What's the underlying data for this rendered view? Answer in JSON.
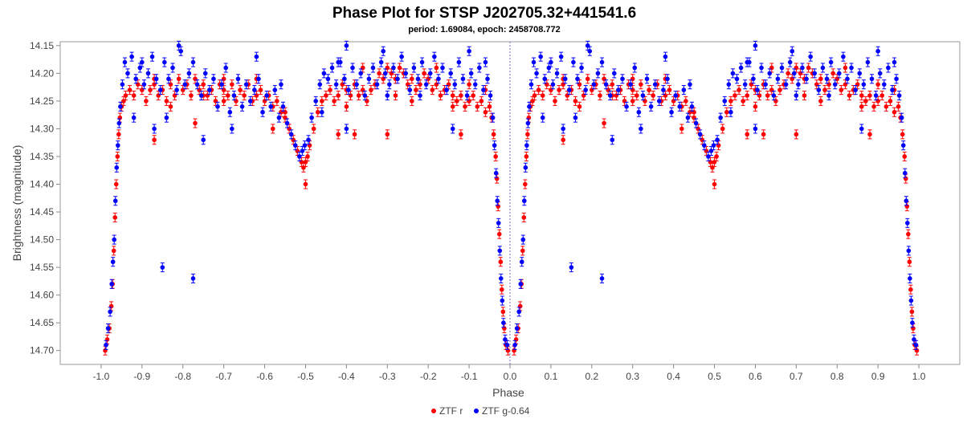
{
  "chart_data": {
    "type": "scatter",
    "title": "Phase Plot for STSP J202705.32+441541.6",
    "subtitle": "period: 1.69084, epoch: 2458708.772",
    "xlabel": "Phase",
    "ylabel": "Brightness (magnitude)",
    "xlim": [
      -1.1,
      1.1
    ],
    "ylim": [
      14.143,
      14.725
    ],
    "y_inverted": true,
    "x_ticks": [
      -1.0,
      -0.9,
      -0.8,
      -0.7,
      -0.6,
      -0.5,
      -0.4,
      -0.3,
      -0.2,
      -0.1,
      0.0,
      0.1,
      0.2,
      0.3,
      0.4,
      0.5,
      0.6,
      0.7,
      0.8,
      0.9,
      1.0
    ],
    "x_tick_labels": [
      "-1.0",
      "-0.9",
      "-0.8",
      "-0.7",
      "-0.6",
      "-0.5",
      "-0.4",
      "-0.3",
      "-0.2",
      "-0.1",
      "0.0",
      "0.1",
      "0.2",
      "0.3",
      "0.4",
      "0.5",
      "0.6",
      "0.7",
      "0.8",
      "0.9",
      "1.0"
    ],
    "y_ticks": [
      14.15,
      14.2,
      14.25,
      14.3,
      14.35,
      14.4,
      14.45,
      14.5,
      14.55,
      14.6,
      14.65,
      14.7
    ],
    "y_tick_labels": [
      "14.15",
      "14.20",
      "14.25",
      "14.30",
      "14.35",
      "14.40",
      "14.45",
      "14.50",
      "14.55",
      "14.60",
      "14.65",
      "14.70"
    ],
    "grid": false,
    "reference_line_x": 0.0,
    "legend_position": "bottom-center",
    "series": [
      {
        "name": "ZTF r",
        "color": "#ff0000",
        "points": [
          [
            0.01,
            14.7
          ],
          [
            0.015,
            14.68
          ],
          [
            0.02,
            14.66
          ],
          [
            0.025,
            14.62
          ],
          [
            0.028,
            14.58
          ],
          [
            0.031,
            14.52
          ],
          [
            0.034,
            14.46
          ],
          [
            0.037,
            14.4
          ],
          [
            0.04,
            14.35
          ],
          [
            0.043,
            14.31
          ],
          [
            0.046,
            14.28
          ],
          [
            0.05,
            14.26
          ],
          [
            0.055,
            14.25
          ],
          [
            0.06,
            14.24
          ],
          [
            0.07,
            14.23
          ],
          [
            0.08,
            14.24
          ],
          [
            0.09,
            14.22
          ],
          [
            0.1,
            14.23
          ],
          [
            0.11,
            14.25
          ],
          [
            0.12,
            14.23
          ],
          [
            0.13,
            14.22
          ],
          [
            0.14,
            14.24
          ],
          [
            0.15,
            14.23
          ],
          [
            0.16,
            14.25
          ],
          [
            0.17,
            14.22
          ],
          [
            0.18,
            14.24
          ],
          [
            0.19,
            14.21
          ],
          [
            0.2,
            14.23
          ],
          [
            0.21,
            14.22
          ],
          [
            0.22,
            14.24
          ],
          [
            0.23,
            14.21
          ],
          [
            0.24,
            14.23
          ],
          [
            0.25,
            14.22
          ],
          [
            0.26,
            14.24
          ],
          [
            0.27,
            14.23
          ],
          [
            0.28,
            14.25
          ],
          [
            0.29,
            14.22
          ],
          [
            0.3,
            14.23
          ],
          [
            0.31,
            14.24
          ],
          [
            0.32,
            14.22
          ],
          [
            0.33,
            14.25
          ],
          [
            0.34,
            14.23
          ],
          [
            0.35,
            14.24
          ],
          [
            0.36,
            14.22
          ],
          [
            0.37,
            14.25
          ],
          [
            0.38,
            14.24
          ],
          [
            0.39,
            14.23
          ],
          [
            0.4,
            14.25
          ],
          [
            0.41,
            14.24
          ],
          [
            0.42,
            14.26
          ],
          [
            0.43,
            14.25
          ],
          [
            0.44,
            14.27
          ],
          [
            0.45,
            14.28
          ],
          [
            0.46,
            14.3
          ],
          [
            0.47,
            14.32
          ],
          [
            0.48,
            14.34
          ],
          [
            0.49,
            14.36
          ],
          [
            0.495,
            14.37
          ],
          [
            0.5,
            14.36
          ],
          [
            0.505,
            14.35
          ],
          [
            0.51,
            14.33
          ],
          [
            0.52,
            14.3
          ],
          [
            0.53,
            14.27
          ],
          [
            0.54,
            14.25
          ],
          [
            0.55,
            14.24
          ],
          [
            0.56,
            14.23
          ],
          [
            0.57,
            14.25
          ],
          [
            0.58,
            14.24
          ],
          [
            0.59,
            14.22
          ],
          [
            0.6,
            14.23
          ],
          [
            0.61,
            14.24
          ],
          [
            0.62,
            14.22
          ],
          [
            0.63,
            14.24
          ],
          [
            0.64,
            14.23
          ],
          [
            0.65,
            14.25
          ],
          [
            0.66,
            14.23
          ],
          [
            0.67,
            14.22
          ],
          [
            0.68,
            14.2
          ],
          [
            0.69,
            14.21
          ],
          [
            0.7,
            14.19
          ],
          [
            0.71,
            14.2
          ],
          [
            0.72,
            14.21
          ],
          [
            0.73,
            14.19
          ],
          [
            0.74,
            14.2
          ],
          [
            0.75,
            14.22
          ],
          [
            0.76,
            14.21
          ],
          [
            0.77,
            14.23
          ],
          [
            0.78,
            14.22
          ],
          [
            0.79,
            14.2
          ],
          [
            0.8,
            14.21
          ],
          [
            0.81,
            14.23
          ],
          [
            0.82,
            14.22
          ],
          [
            0.83,
            14.24
          ],
          [
            0.84,
            14.23
          ],
          [
            0.85,
            14.22
          ],
          [
            0.86,
            14.24
          ],
          [
            0.87,
            14.25
          ],
          [
            0.88,
            14.24
          ],
          [
            0.89,
            14.26
          ],
          [
            0.9,
            14.25
          ],
          [
            0.91,
            14.24
          ],
          [
            0.92,
            14.26
          ],
          [
            0.93,
            14.25
          ],
          [
            0.94,
            14.27
          ],
          [
            0.95,
            14.26
          ],
          [
            0.955,
            14.28
          ],
          [
            0.96,
            14.31
          ],
          [
            0.965,
            14.35
          ],
          [
            0.968,
            14.39
          ],
          [
            0.971,
            14.44
          ],
          [
            0.974,
            14.49
          ],
          [
            0.977,
            14.54
          ],
          [
            0.98,
            14.59
          ],
          [
            0.983,
            14.63
          ],
          [
            0.986,
            14.66
          ],
          [
            0.99,
            14.69
          ],
          [
            0.995,
            14.7
          ],
          [
            0.25,
            14.24
          ],
          [
            0.3,
            14.21
          ],
          [
            0.13,
            14.21
          ],
          [
            0.17,
            14.26
          ],
          [
            0.3,
            14.25
          ],
          [
            0.38,
            14.21
          ],
          [
            0.6,
            14.26
          ],
          [
            0.72,
            14.24
          ],
          [
            0.82,
            14.19
          ],
          [
            0.86,
            14.26
          ],
          [
            0.9,
            14.22
          ],
          [
            0.5,
            14.4
          ],
          [
            0.58,
            14.31
          ],
          [
            0.62,
            14.31
          ],
          [
            0.7,
            14.31
          ],
          [
            0.88,
            14.31
          ],
          [
            0.23,
            14.29
          ],
          [
            0.13,
            14.32
          ],
          [
            0.42,
            14.3
          ],
          [
            0.45,
            14.27
          ],
          [
            0.64,
            14.19
          ],
          [
            0.94,
            14.23
          ],
          [
            0.76,
            14.25
          ]
        ]
      },
      {
        "name": "ZTF g-0.64",
        "color": "#0000ff",
        "points": [
          [
            0.012,
            14.69
          ],
          [
            0.017,
            14.66
          ],
          [
            0.022,
            14.63
          ],
          [
            0.026,
            14.58
          ],
          [
            0.029,
            14.54
          ],
          [
            0.032,
            14.5
          ],
          [
            0.035,
            14.43
          ],
          [
            0.038,
            14.37
          ],
          [
            0.041,
            14.33
          ],
          [
            0.044,
            14.29
          ],
          [
            0.047,
            14.26
          ],
          [
            0.052,
            14.22
          ],
          [
            0.058,
            14.18
          ],
          [
            0.065,
            14.2
          ],
          [
            0.075,
            14.17
          ],
          [
            0.085,
            14.21
          ],
          [
            0.095,
            14.19
          ],
          [
            0.105,
            14.22
          ],
          [
            0.115,
            14.2
          ],
          [
            0.125,
            14.17
          ],
          [
            0.135,
            14.21
          ],
          [
            0.145,
            14.23
          ],
          [
            0.155,
            14.18
          ],
          [
            0.165,
            14.21
          ],
          [
            0.175,
            14.19
          ],
          [
            0.185,
            14.23
          ],
          [
            0.195,
            14.16
          ],
          [
            0.205,
            14.22
          ],
          [
            0.215,
            14.2
          ],
          [
            0.225,
            14.18
          ],
          [
            0.235,
            14.22
          ],
          [
            0.245,
            14.24
          ],
          [
            0.255,
            14.2
          ],
          [
            0.265,
            14.23
          ],
          [
            0.275,
            14.21
          ],
          [
            0.285,
            14.26
          ],
          [
            0.295,
            14.22
          ],
          [
            0.305,
            14.19
          ],
          [
            0.315,
            14.27
          ],
          [
            0.325,
            14.24
          ],
          [
            0.335,
            14.21
          ],
          [
            0.345,
            14.26
          ],
          [
            0.355,
            14.22
          ],
          [
            0.365,
            14.25
          ],
          [
            0.375,
            14.23
          ],
          [
            0.385,
            14.21
          ],
          [
            0.395,
            14.27
          ],
          [
            0.405,
            14.24
          ],
          [
            0.415,
            14.26
          ],
          [
            0.425,
            14.23
          ],
          [
            0.435,
            14.28
          ],
          [
            0.445,
            14.26
          ],
          [
            0.455,
            14.29
          ],
          [
            0.465,
            14.31
          ],
          [
            0.475,
            14.33
          ],
          [
            0.485,
            14.35
          ],
          [
            0.492,
            14.34
          ],
          [
            0.498,
            14.33
          ],
          [
            0.507,
            14.32
          ],
          [
            0.515,
            14.28
          ],
          [
            0.525,
            14.25
          ],
          [
            0.535,
            14.22
          ],
          [
            0.545,
            14.2
          ],
          [
            0.555,
            14.21
          ],
          [
            0.565,
            14.19
          ],
          [
            0.575,
            14.22
          ],
          [
            0.585,
            14.18
          ],
          [
            0.595,
            14.21
          ],
          [
            0.605,
            14.23
          ],
          [
            0.615,
            14.19
          ],
          [
            0.625,
            14.22
          ],
          [
            0.635,
            14.2
          ],
          [
            0.645,
            14.24
          ],
          [
            0.655,
            14.21
          ],
          [
            0.665,
            14.19
          ],
          [
            0.675,
            14.22
          ],
          [
            0.685,
            14.18
          ],
          [
            0.695,
            14.2
          ],
          [
            0.705,
            14.22
          ],
          [
            0.715,
            14.19
          ],
          [
            0.725,
            14.21
          ],
          [
            0.735,
            14.17
          ],
          [
            0.745,
            14.2
          ],
          [
            0.755,
            14.23
          ],
          [
            0.765,
            14.19
          ],
          [
            0.775,
            14.21
          ],
          [
            0.785,
            14.18
          ],
          [
            0.795,
            14.22
          ],
          [
            0.805,
            14.2
          ],
          [
            0.815,
            14.17
          ],
          [
            0.825,
            14.21
          ],
          [
            0.835,
            14.19
          ],
          [
            0.845,
            14.23
          ],
          [
            0.855,
            14.2
          ],
          [
            0.865,
            14.22
          ],
          [
            0.875,
            14.18
          ],
          [
            0.885,
            14.21
          ],
          [
            0.895,
            14.24
          ],
          [
            0.905,
            14.2
          ],
          [
            0.915,
            14.22
          ],
          [
            0.925,
            14.19
          ],
          [
            0.935,
            14.23
          ],
          [
            0.945,
            14.21
          ],
          [
            0.952,
            14.24
          ],
          [
            0.958,
            14.28
          ],
          [
            0.962,
            14.33
          ],
          [
            0.966,
            14.38
          ],
          [
            0.969,
            14.43
          ],
          [
            0.972,
            14.47
          ],
          [
            0.975,
            14.52
          ],
          [
            0.978,
            14.57
          ],
          [
            0.981,
            14.61
          ],
          [
            0.984,
            14.65
          ],
          [
            0.988,
            14.68
          ],
          [
            0.993,
            14.69
          ],
          [
            0.15,
            14.55
          ],
          [
            0.225,
            14.57
          ],
          [
            0.25,
            14.32
          ],
          [
            0.58,
            14.18
          ],
          [
            0.6,
            14.15
          ],
          [
            0.69,
            14.16
          ],
          [
            0.9,
            14.16
          ],
          [
            0.94,
            14.18
          ],
          [
            0.38,
            14.17
          ],
          [
            0.19,
            14.15
          ],
          [
            0.16,
            14.28
          ],
          [
            0.13,
            14.3
          ],
          [
            0.08,
            14.28
          ],
          [
            0.86,
            14.3
          ],
          [
            0.44,
            14.22
          ],
          [
            0.6,
            14.3
          ],
          [
            0.32,
            14.3
          ],
          [
            0.1,
            14.18
          ],
          [
            0.7,
            14.24
          ],
          [
            0.78,
            14.24
          ],
          [
            0.54,
            14.27
          ]
        ]
      }
    ]
  }
}
